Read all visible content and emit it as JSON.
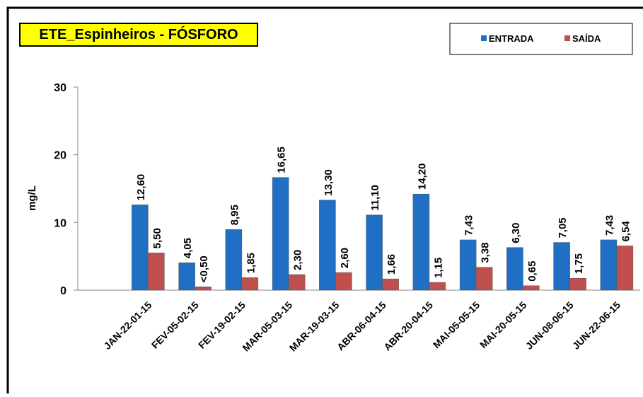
{
  "chart_data": {
    "type": "bar",
    "title": "ETE_Espinheiros - FÓSFORO",
    "y_label": "mg/L",
    "categories": [
      null,
      "JAN-22-01-15",
      "FEV-05-02-15",
      "FEV-19-02-15",
      "MAR-05-03-15",
      "MAR-19-03-15",
      "ABR-06-04-15",
      "ABR-20-04-15",
      "MAI-05-05-15",
      "MAI-20-05-15",
      "JUN-08-06-15",
      "JUN-22-06-15"
    ],
    "series": [
      {
        "name": "ENTRADA",
        "color": "#1f6fc5",
        "values": [
          null,
          12.6,
          4.05,
          8.95,
          16.65,
          13.3,
          11.1,
          14.2,
          7.43,
          6.3,
          7.05,
          7.43
        ],
        "value_labels": [
          null,
          "12,60",
          "4,05",
          "8,95",
          "16,65",
          "13,30",
          "11,10",
          "14,20",
          "7,43",
          "6,30",
          "7,05",
          "7,43"
        ]
      },
      {
        "name": "SAÍDA",
        "color": "#c0504d",
        "values": [
          null,
          5.5,
          0.5,
          1.85,
          2.3,
          2.6,
          1.66,
          1.15,
          3.38,
          0.65,
          1.75,
          6.54
        ],
        "value_labels": [
          null,
          "5,50",
          "<0,50",
          "1,85",
          "2,30",
          "2,60",
          "1,66",
          "1,15",
          "3,38",
          "0,65",
          "1,75",
          "6,54"
        ]
      }
    ],
    "ylim": [
      0,
      30
    ],
    "yticks": [
      0,
      10,
      20,
      30
    ],
    "grid": false,
    "legend": "top-right"
  }
}
